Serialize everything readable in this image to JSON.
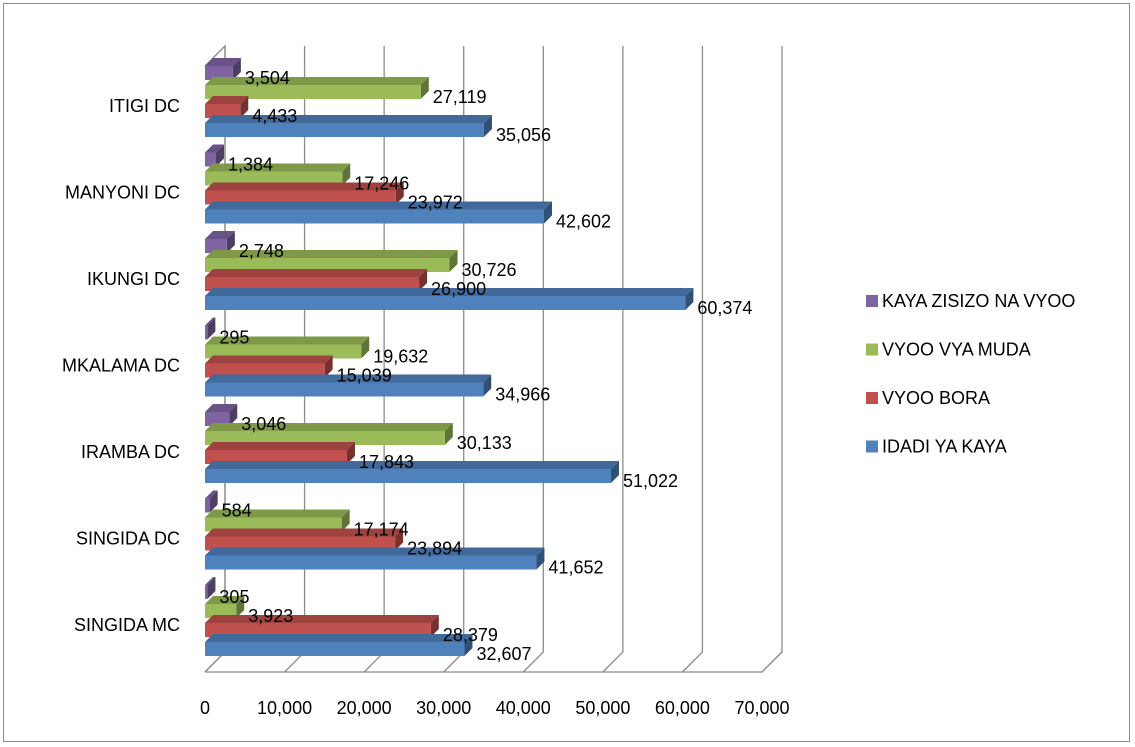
{
  "chart_data": {
    "type": "bar",
    "orientation": "horizontal",
    "three_d": true,
    "categories": [
      "SINGIDA MC",
      "SINGIDA DC",
      "IRAMBA DC",
      "MKALAMA DC",
      "IKUNGI DC",
      "MANYONI DC",
      "ITIGI DC"
    ],
    "series": [
      {
        "name": "IDADI YA KAYA",
        "color": "#4F81BD",
        "values": [
          32607,
          41652,
          51022,
          34966,
          60374,
          42602,
          35056
        ]
      },
      {
        "name": "VYOO BORA",
        "color": "#C0504D",
        "values": [
          28379,
          23894,
          17843,
          15039,
          26900,
          23972,
          4433
        ]
      },
      {
        "name": "VYOO VYA MUDA",
        "color": "#9BBB59",
        "values": [
          3923,
          17174,
          30133,
          19632,
          30726,
          17246,
          27119
        ]
      },
      {
        "name": "KAYA ZISIZO NA VYOO",
        "color": "#8064A2",
        "values": [
          305,
          584,
          3046,
          295,
          2748,
          1384,
          3504
        ]
      }
    ],
    "xlim": [
      0,
      70000
    ],
    "xticks": [
      "0",
      "10,000",
      "20,000",
      "30,000",
      "40,000",
      "50,000",
      "60,000",
      "70,000"
    ],
    "grid": true,
    "legend_position": "right"
  }
}
